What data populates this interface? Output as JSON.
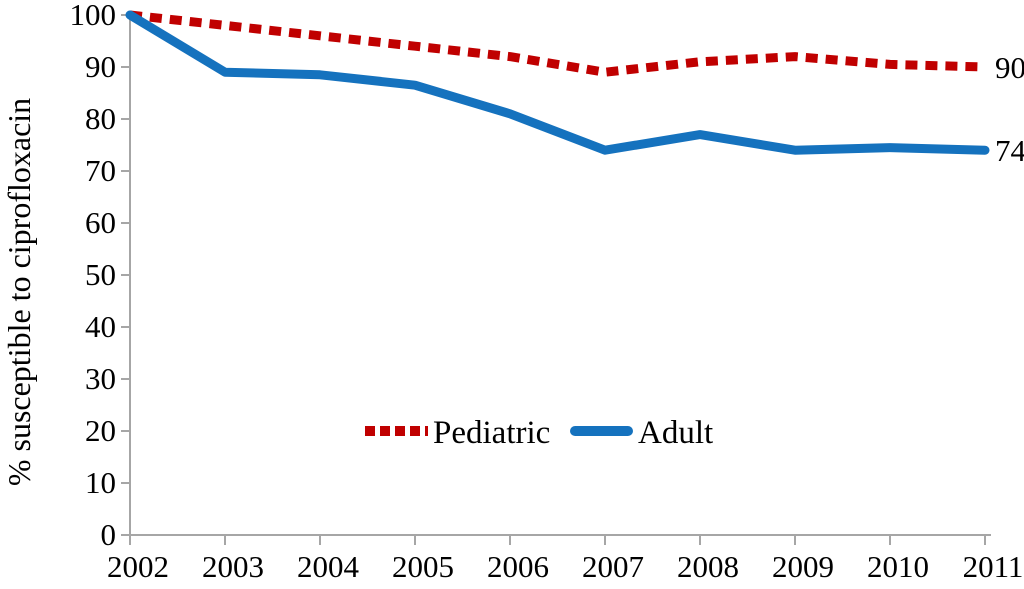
{
  "chart_data": {
    "type": "line",
    "title": "",
    "xlabel": "",
    "ylabel": "% susceptible to ciprofloxacin",
    "categories": [
      2002,
      2003,
      2004,
      2005,
      2006,
      2007,
      2008,
      2009,
      2010,
      2011
    ],
    "ylim": [
      0,
      100
    ],
    "yticks": [
      0,
      10,
      20,
      30,
      40,
      50,
      60,
      70,
      80,
      90,
      100
    ],
    "grid": false,
    "legend_position": "inside-plot-lower-center",
    "series": [
      {
        "name": "Pediatric",
        "style": "dotted",
        "color": "#C00000",
        "values": [
          100,
          98,
          96,
          94,
          92,
          89,
          91,
          92,
          90.5,
          90
        ],
        "end_label": "90"
      },
      {
        "name": "Adult",
        "style": "solid",
        "color": "#1572BE",
        "values": [
          100,
          89,
          88.5,
          86.5,
          81,
          74,
          77,
          74,
          74.5,
          74
        ],
        "end_label": "74"
      }
    ]
  },
  "colors": {
    "axis": "#A6A6A6",
    "text": "#000000",
    "background": "#FFFFFF"
  }
}
